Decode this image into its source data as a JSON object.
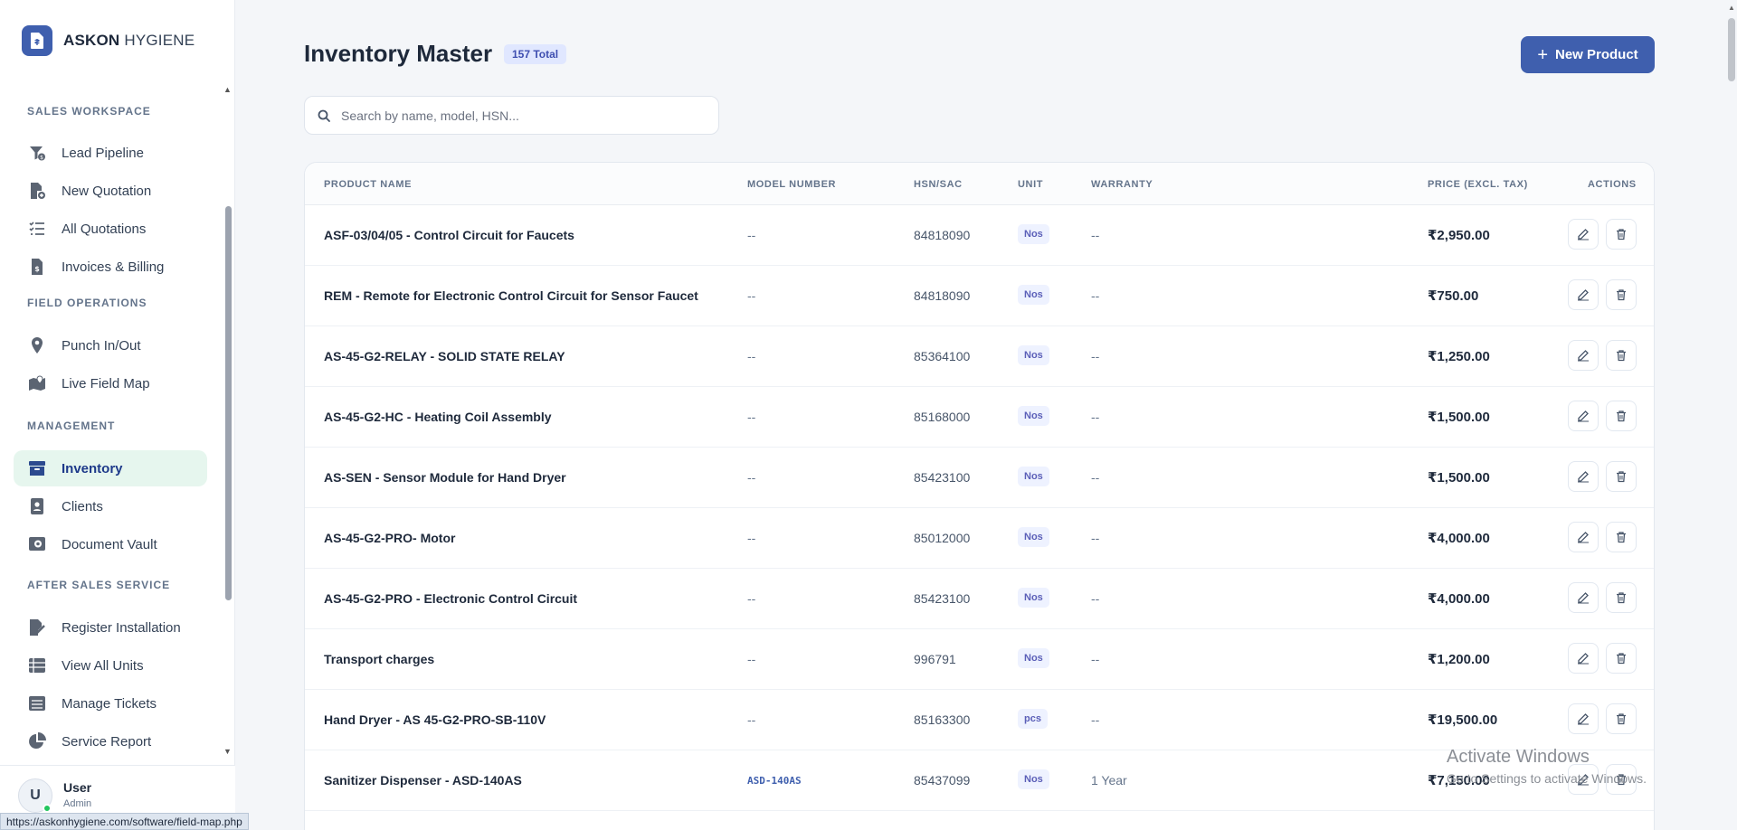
{
  "brand": {
    "bold": "ASKON",
    "light": "HYGIENE"
  },
  "sidebar": {
    "sections": [
      {
        "title": "SALES WORKSPACE",
        "items": [
          {
            "label": "Lead Pipeline",
            "icon": "funnel-dollar-icon"
          },
          {
            "label": "New Quotation",
            "icon": "file-plus-icon"
          },
          {
            "label": "All Quotations",
            "icon": "list-check-icon"
          },
          {
            "label": "Invoices & Billing",
            "icon": "invoice-dollar-icon"
          }
        ]
      },
      {
        "title": "FIELD OPERATIONS",
        "items": [
          {
            "label": "Punch In/Out",
            "icon": "location-pin-icon"
          },
          {
            "label": "Live Field Map",
            "icon": "map-location-icon"
          }
        ]
      },
      {
        "title": "MANAGEMENT",
        "items": [
          {
            "label": "Inventory",
            "icon": "archive-box-icon",
            "active": true
          },
          {
            "label": "Clients",
            "icon": "address-book-icon"
          },
          {
            "label": "Document Vault",
            "icon": "vault-icon"
          }
        ]
      },
      {
        "title": "AFTER SALES SERVICE",
        "items": [
          {
            "label": "Register Installation",
            "icon": "file-signature-icon"
          },
          {
            "label": "View All Units",
            "icon": "table-list-icon"
          },
          {
            "label": "Manage Tickets",
            "icon": "ticket-list-icon"
          },
          {
            "label": "Service Report",
            "icon": "pie-chart-icon"
          }
        ]
      }
    ]
  },
  "user": {
    "initial": "U",
    "name": "User",
    "role": "Admin"
  },
  "status_url": "https://askonhygiene.com/software/field-map.php",
  "header": {
    "title": "Inventory Master",
    "badge": "157 Total",
    "new_button": "New Product"
  },
  "search": {
    "placeholder": "Search by name, model, HSN...",
    "value": ""
  },
  "table": {
    "columns": [
      "PRODUCT NAME",
      "MODEL NUMBER",
      "HSN/SAC",
      "UNIT",
      "WARRANTY",
      "PRICE (EXCL. TAX)",
      "ACTIONS"
    ],
    "rows": [
      {
        "name": "ASF-03/04/05 - Control Circuit for Faucets",
        "model": "--",
        "hsn": "84818090",
        "unit": "Nos",
        "warranty": "--",
        "price": "₹2,950.00"
      },
      {
        "name": "REM - Remote for Electronic Control Circuit for Sensor Faucet",
        "model": "--",
        "hsn": "84818090",
        "unit": "Nos",
        "warranty": "--",
        "price": "₹750.00"
      },
      {
        "name": "AS-45-G2-RELAY - SOLID STATE RELAY",
        "model": "--",
        "hsn": "85364100",
        "unit": "Nos",
        "warranty": "--",
        "price": "₹1,250.00"
      },
      {
        "name": "AS-45-G2-HC - Heating Coil Assembly",
        "model": "--",
        "hsn": "85168000",
        "unit": "Nos",
        "warranty": "--",
        "price": "₹1,500.00"
      },
      {
        "name": "AS-SEN - Sensor Module for Hand Dryer",
        "model": "--",
        "hsn": "85423100",
        "unit": "Nos",
        "warranty": "--",
        "price": "₹1,500.00"
      },
      {
        "name": "AS-45-G2-PRO- Motor",
        "model": "--",
        "hsn": "85012000",
        "unit": "Nos",
        "warranty": "--",
        "price": "₹4,000.00"
      },
      {
        "name": "AS-45-G2-PRO - Electronic Control Circuit",
        "model": "--",
        "hsn": "85423100",
        "unit": "Nos",
        "warranty": "--",
        "price": "₹4,000.00"
      },
      {
        "name": "Transport charges",
        "model": "--",
        "hsn": "996791",
        "unit": "Nos",
        "warranty": "--",
        "price": "₹1,200.00"
      },
      {
        "name": "Hand Dryer - AS 45-G2-PRO-SB-110V",
        "model": "--",
        "hsn": "85163300",
        "unit": "pcs",
        "warranty": "--",
        "price": "₹19,500.00"
      },
      {
        "name": "Sanitizer Dispenser - ASD-140AS",
        "model": "ASD-140AS",
        "hsn": "85437099",
        "unit": "Nos",
        "warranty": "1 Year",
        "price": "₹7,150.00"
      }
    ]
  },
  "watermark": {
    "line1": "Activate Windows",
    "line2": "Go to Settings to activate Windows."
  },
  "colors": {
    "primary": "#3f5fae",
    "active_bg": "#e6f6ee",
    "badge_bg": "#e0e7ff"
  }
}
